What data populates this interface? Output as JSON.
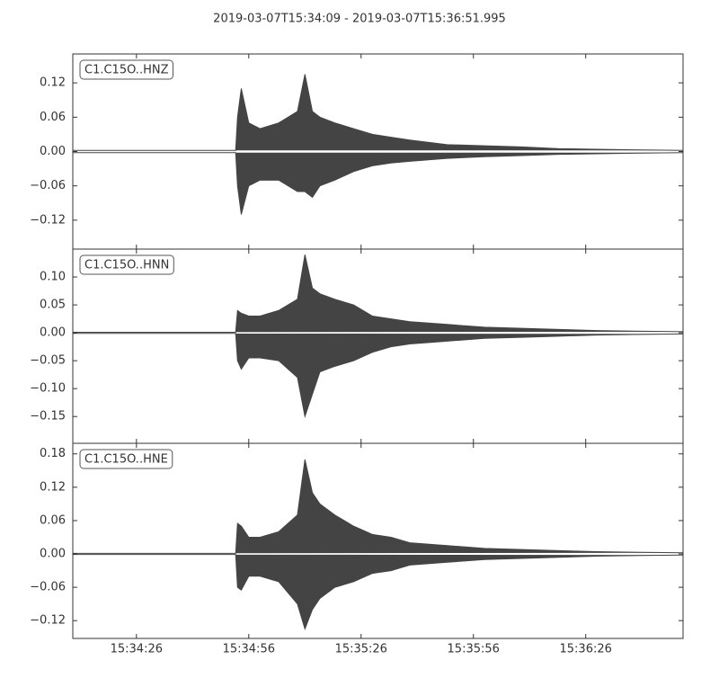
{
  "title": "2019-03-07T15:34:09  -  2019-03-07T15:36:51.995",
  "chart_data": [
    {
      "type": "area",
      "label": "C1.C15O..HNZ",
      "x": [
        0,
        43.5,
        44,
        45,
        47,
        50,
        55,
        60,
        62,
        64,
        66,
        70,
        75,
        80,
        85,
        90,
        100,
        110,
        120,
        130,
        140,
        150,
        163
      ],
      "series": [
        {
          "color": "#444444",
          "values": [
            0.002,
            0.002,
            0.06,
            0.11,
            0.05,
            0.04,
            0.05,
            0.07,
            0.135,
            0.07,
            0.06,
            0.05,
            0.04,
            0.03,
            0.025,
            0.02,
            0.012,
            0.01,
            0.008,
            0.005,
            0.004,
            0.003,
            0.002
          ]
        },
        {
          "color": "#444444",
          "values": [
            -0.002,
            -0.002,
            -0.06,
            -0.11,
            -0.06,
            -0.05,
            -0.05,
            -0.07,
            -0.07,
            -0.08,
            -0.06,
            -0.05,
            -0.035,
            -0.025,
            -0.02,
            -0.017,
            -0.012,
            -0.009,
            -0.007,
            -0.005,
            -0.004,
            -0.003,
            -0.002
          ]
        }
      ],
      "ylim": [
        -0.1705,
        0.1705
      ],
      "yticks": [
        {
          "value": -0.12,
          "label": "−0.12"
        },
        {
          "value": -0.06,
          "label": "−0.06"
        },
        {
          "value": 0,
          "label": "0.00"
        },
        {
          "value": 0.06,
          "label": "0.06"
        },
        {
          "value": 0.12,
          "label": "0.12"
        }
      ]
    },
    {
      "type": "area",
      "label": "C1.C15O..HNN",
      "x": [
        0,
        43.5,
        44,
        45,
        47,
        50,
        55,
        60,
        62,
        64,
        66,
        70,
        75,
        80,
        85,
        90,
        100,
        110,
        120,
        130,
        140,
        150,
        163
      ],
      "series": [
        {
          "color": "#444444",
          "values": [
            0.001,
            0.001,
            0.04,
            0.035,
            0.03,
            0.03,
            0.04,
            0.06,
            0.14,
            0.08,
            0.07,
            0.06,
            0.05,
            0.03,
            0.025,
            0.02,
            0.015,
            0.01,
            0.008,
            0.006,
            0.004,
            0.003,
            0.002
          ]
        },
        {
          "color": "#444444",
          "values": [
            -0.001,
            -0.001,
            -0.05,
            -0.065,
            -0.045,
            -0.045,
            -0.05,
            -0.08,
            -0.15,
            -0.11,
            -0.07,
            -0.06,
            -0.05,
            -0.035,
            -0.025,
            -0.02,
            -0.015,
            -0.01,
            -0.008,
            -0.006,
            -0.004,
            -0.003,
            -0.002
          ]
        }
      ],
      "ylim": [
        -0.198,
        0.15
      ],
      "yticks": [
        {
          "value": -0.15,
          "label": "−0.15"
        },
        {
          "value": -0.1,
          "label": "−0.10"
        },
        {
          "value": -0.05,
          "label": "−0.05"
        },
        {
          "value": 0,
          "label": "0.00"
        },
        {
          "value": 0.05,
          "label": "0.05"
        },
        {
          "value": 0.1,
          "label": "0.10"
        }
      ]
    },
    {
      "type": "area",
      "label": "C1.C15O..HNE",
      "x": [
        0,
        43.5,
        44,
        45,
        47,
        50,
        55,
        60,
        62,
        64,
        66,
        70,
        75,
        80,
        85,
        90,
        100,
        110,
        120,
        130,
        140,
        150,
        163
      ],
      "series": [
        {
          "color": "#444444",
          "values": [
            0.001,
            0.001,
            0.055,
            0.05,
            0.03,
            0.03,
            0.04,
            0.07,
            0.17,
            0.11,
            0.09,
            0.07,
            0.05,
            0.035,
            0.03,
            0.02,
            0.015,
            0.01,
            0.008,
            0.006,
            0.004,
            0.003,
            0.002
          ]
        },
        {
          "color": "#444444",
          "values": [
            -0.001,
            -0.001,
            -0.06,
            -0.065,
            -0.04,
            -0.04,
            -0.05,
            -0.09,
            -0.135,
            -0.1,
            -0.08,
            -0.06,
            -0.05,
            -0.035,
            -0.03,
            -0.02,
            -0.015,
            -0.01,
            -0.008,
            -0.006,
            -0.004,
            -0.003,
            -0.002
          ]
        }
      ],
      "ylim": [
        -0.152,
        0.199
      ],
      "yticks": [
        {
          "value": -0.12,
          "label": "−0.12"
        },
        {
          "value": -0.06,
          "label": "−0.06"
        },
        {
          "value": 0,
          "label": "0.00"
        },
        {
          "value": 0.06,
          "label": "0.06"
        },
        {
          "value": 0.12,
          "label": "0.12"
        },
        {
          "value": 0.18,
          "label": "0.18"
        }
      ],
      "xlim": [
        0,
        162.995
      ],
      "xticks": [
        {
          "value": 17,
          "label": "15:34:26"
        },
        {
          "value": 47,
          "label": "15:34:56"
        },
        {
          "value": 77,
          "label": "15:35:26"
        },
        {
          "value": 107,
          "label": "15:35:56"
        },
        {
          "value": 137,
          "label": "15:36:26"
        }
      ]
    }
  ]
}
